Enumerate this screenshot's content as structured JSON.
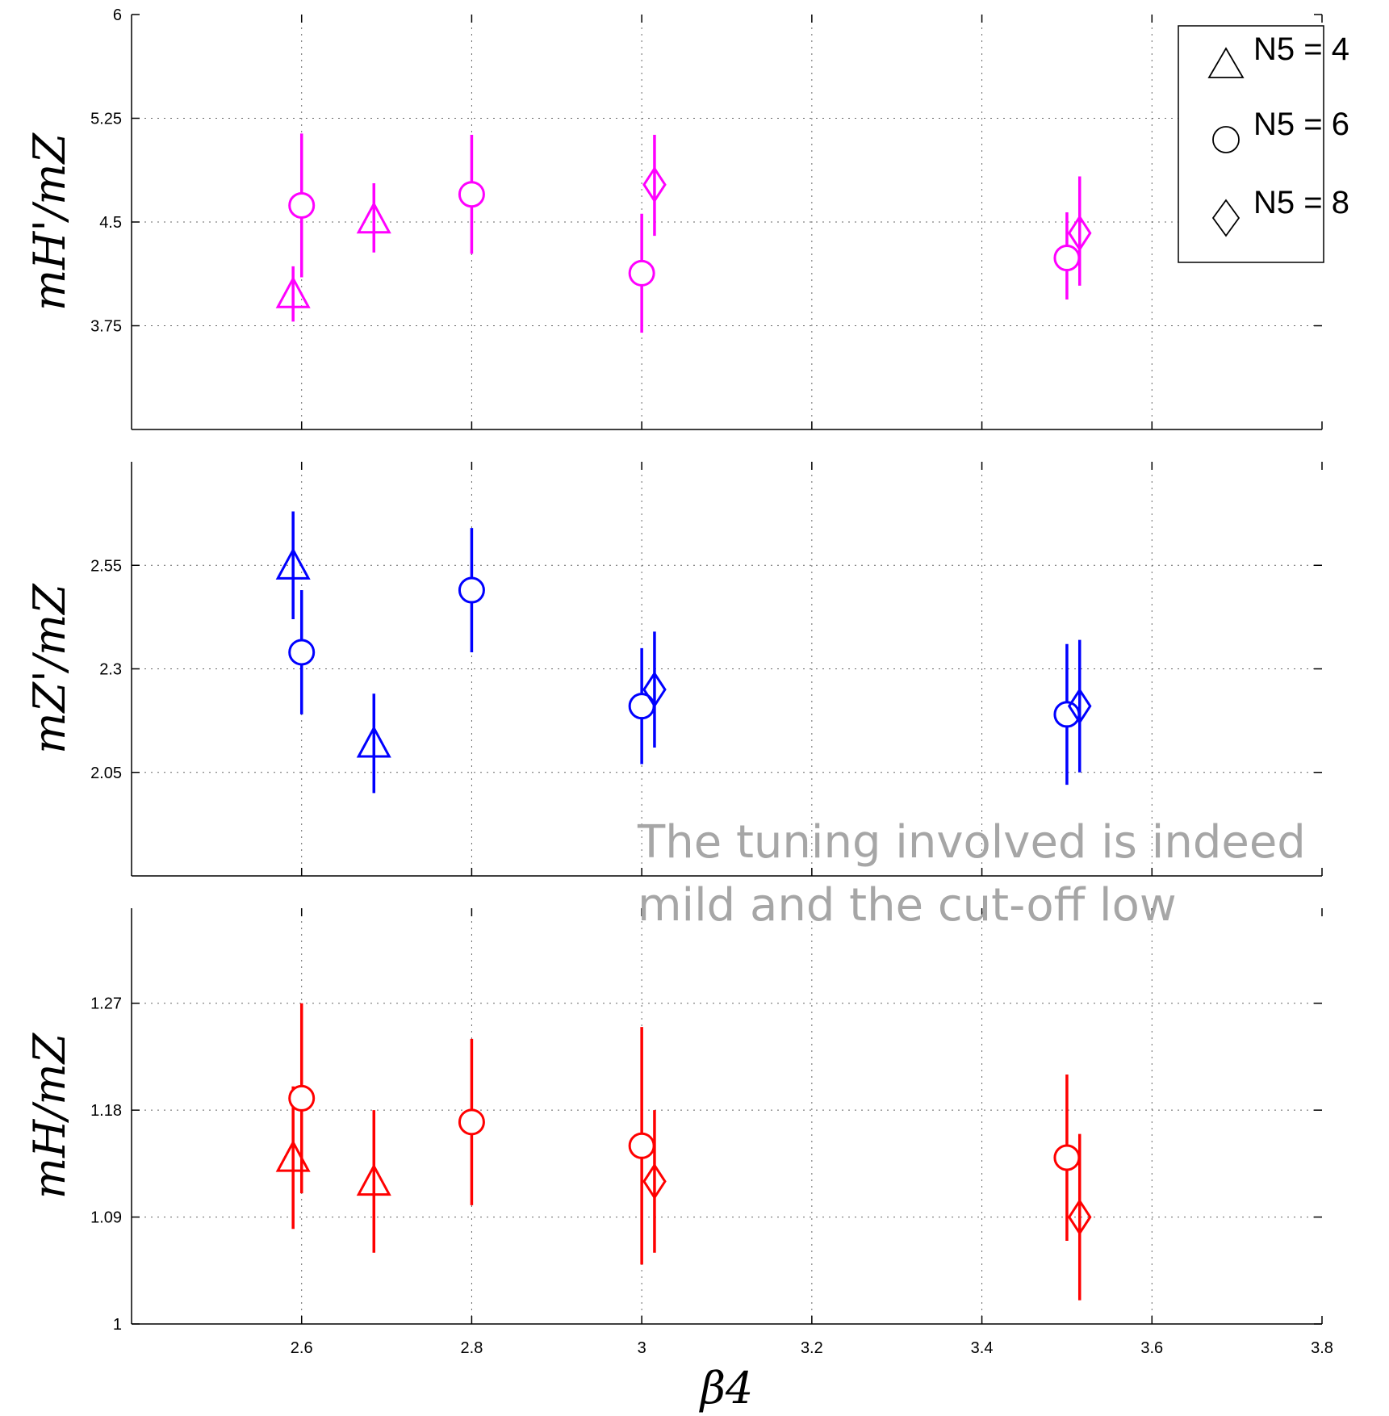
{
  "chart_data": {
    "type": "scatter",
    "xlabel": "β4",
    "xlim": [
      2.4,
      3.8
    ],
    "xticks": [
      "2.6",
      "2.8",
      "3",
      "3.2",
      "3.4",
      "3.6",
      "3.8"
    ],
    "grid": true,
    "legend": {
      "placement": "top-right",
      "entries": [
        {
          "marker": "triangle",
          "label": "N5 = 4"
        },
        {
          "marker": "circle",
          "label": "N5 = 6"
        },
        {
          "marker": "diamond",
          "label": "N5 = 8"
        }
      ]
    },
    "annotation": {
      "lines": [
        "The tuning involved is indeed",
        "mild and the cut-off low"
      ],
      "color": "#a6a6a6"
    },
    "panels": [
      {
        "name": "top",
        "ylabel": "mH'/mZ",
        "color": "#ff00ff",
        "ylim": [
          3.0,
          6.0
        ],
        "yticks": [
          "3.75",
          "4.5",
          "5.25",
          "6"
        ],
        "series": [
          {
            "marker": "triangle",
            "points": [
              {
                "x": 2.59,
                "y": 3.98,
                "lo": 3.78,
                "hi": 4.18
              },
              {
                "x": 2.685,
                "y": 4.52,
                "lo": 4.28,
                "hi": 4.78
              }
            ]
          },
          {
            "marker": "circle",
            "points": [
              {
                "x": 2.6,
                "y": 4.62,
                "lo": 4.1,
                "hi": 5.14
              },
              {
                "x": 2.8,
                "y": 4.7,
                "lo": 4.27,
                "hi": 5.13
              },
              {
                "x": 3.0,
                "y": 4.13,
                "lo": 3.7,
                "hi": 4.56
              },
              {
                "x": 3.5,
                "y": 4.24,
                "lo": 3.94,
                "hi": 4.57
              }
            ]
          },
          {
            "marker": "diamond",
            "points": [
              {
                "x": 3.015,
                "y": 4.77,
                "lo": 4.4,
                "hi": 5.13
              },
              {
                "x": 3.515,
                "y": 4.42,
                "lo": 4.04,
                "hi": 4.83
              }
            ]
          }
        ]
      },
      {
        "name": "middle",
        "ylabel": "mZ'/mZ",
        "color": "#0000ff",
        "ylim": [
          1.8,
          2.8
        ],
        "yticks": [
          "2.05",
          "2.3",
          "2.55"
        ],
        "series": [
          {
            "marker": "triangle",
            "points": [
              {
                "x": 2.59,
                "y": 2.55,
                "lo": 2.42,
                "hi": 2.68
              },
              {
                "x": 2.685,
                "y": 2.12,
                "lo": 2.0,
                "hi": 2.24
              }
            ]
          },
          {
            "marker": "circle",
            "points": [
              {
                "x": 2.6,
                "y": 2.34,
                "lo": 2.19,
                "hi": 2.49
              },
              {
                "x": 2.8,
                "y": 2.49,
                "lo": 2.34,
                "hi": 2.64
              },
              {
                "x": 3.0,
                "y": 2.21,
                "lo": 2.07,
                "hi": 2.35
              },
              {
                "x": 3.5,
                "y": 2.19,
                "lo": 2.02,
                "hi": 2.36
              }
            ]
          },
          {
            "marker": "diamond",
            "points": [
              {
                "x": 3.015,
                "y": 2.25,
                "lo": 2.11,
                "hi": 2.39
              },
              {
                "x": 3.515,
                "y": 2.21,
                "lo": 2.05,
                "hi": 2.37
              }
            ]
          }
        ]
      },
      {
        "name": "bottom",
        "ylabel": "mH/mZ",
        "color": "#ff0000",
        "ylim": [
          1.0,
          1.35
        ],
        "yticks": [
          "1",
          "1.09",
          "1.18",
          "1.27"
        ],
        "series": [
          {
            "marker": "triangle",
            "points": [
              {
                "x": 2.59,
                "y": 1.14,
                "lo": 1.08,
                "hi": 1.2
              },
              {
                "x": 2.685,
                "y": 1.12,
                "lo": 1.06,
                "hi": 1.18
              }
            ]
          },
          {
            "marker": "circle",
            "points": [
              {
                "x": 2.6,
                "y": 1.19,
                "lo": 1.11,
                "hi": 1.27
              },
              {
                "x": 2.8,
                "y": 1.17,
                "lo": 1.1,
                "hi": 1.24
              },
              {
                "x": 3.0,
                "y": 1.15,
                "lo": 1.05,
                "hi": 1.25
              },
              {
                "x": 3.5,
                "y": 1.14,
                "lo": 1.07,
                "hi": 1.21
              }
            ]
          },
          {
            "marker": "diamond",
            "points": [
              {
                "x": 3.015,
                "y": 1.12,
                "lo": 1.06,
                "hi": 1.18
              },
              {
                "x": 3.515,
                "y": 1.09,
                "lo": 1.02,
                "hi": 1.16
              }
            ]
          }
        ]
      }
    ]
  }
}
